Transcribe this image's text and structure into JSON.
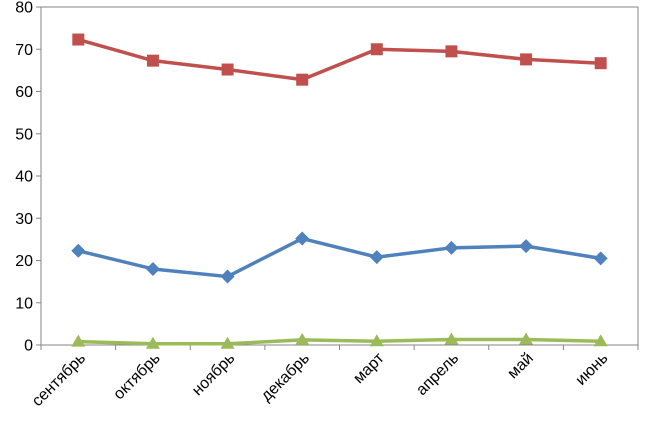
{
  "chart_data": {
    "type": "line",
    "title": "",
    "xlabel": "",
    "ylabel": "",
    "categories": [
      "сентябрь",
      "октябрь",
      "ноябрь",
      "декабрь",
      "март",
      "апрель",
      "май",
      "июнь"
    ],
    "ylim": [
      0,
      80
    ],
    "yticks": [
      0,
      10,
      20,
      30,
      40,
      50,
      60,
      70,
      80
    ],
    "grid": false,
    "legend": "none",
    "series": [
      {
        "color": "#C0504D",
        "marker": "square",
        "values": [
          72.3,
          67.3,
          65.2,
          62.8,
          70.0,
          69.5,
          67.6,
          66.7
        ]
      },
      {
        "color": "#4F81BD",
        "marker": "diamond",
        "values": [
          22.3,
          18.0,
          16.2,
          25.2,
          20.8,
          23.0,
          23.4,
          20.5
        ]
      },
      {
        "color": "#9BBB59",
        "marker": "triangle",
        "values": [
          0.8,
          0.3,
          0.3,
          1.2,
          0.9,
          1.3,
          1.3,
          0.9
        ]
      }
    ]
  }
}
